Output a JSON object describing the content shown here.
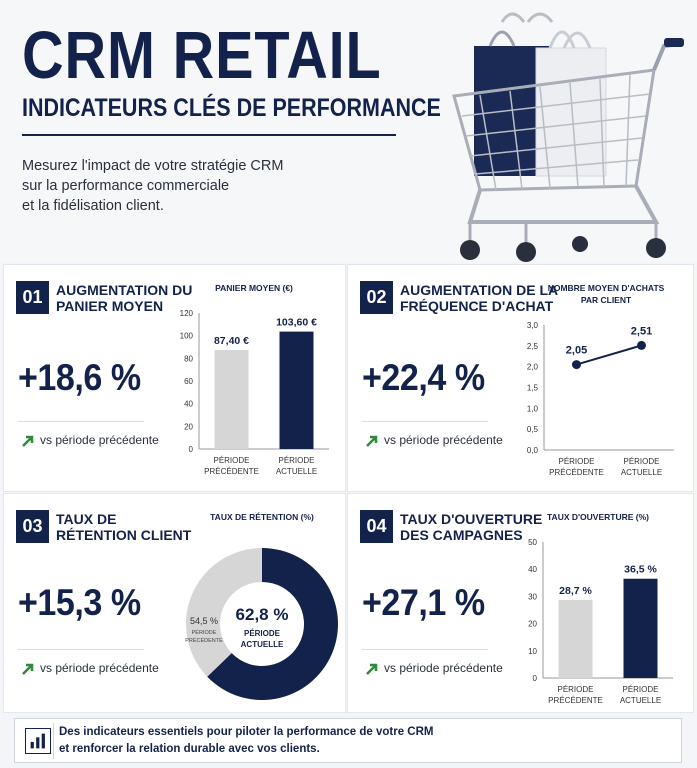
{
  "header": {
    "title": "CRM RETAIL",
    "subtitle": "INDICATEURS CLÉS DE PERFORMANCE",
    "intro_lines": [
      "Mesurez l'impact de votre stratégie CRM",
      "sur la performance commerciale",
      "et la fidélisation client."
    ]
  },
  "panels": [
    {
      "number": "01",
      "title_lines": [
        "AUGMENTATION DU",
        "PANIER MOYEN"
      ],
      "value": "+18,6 %",
      "vs_label": "vs période précédente"
    },
    {
      "number": "02",
      "title_lines": [
        "AUGMENTATION DE LA",
        "FRÉQUENCE D'ACHAT"
      ],
      "value": "+22,4 %",
      "vs_label": "vs période précédente"
    },
    {
      "number": "03",
      "title_lines": [
        "TAUX DE",
        "RÉTENTION CLIENT"
      ],
      "value": "+15,3 %",
      "vs_label": "vs période précédente"
    },
    {
      "number": "04",
      "title_lines": [
        "TAUX D'OUVERTURE",
        "DES CAMPAGNES"
      ],
      "value": "+27,1 %",
      "vs_label": "vs période précédente"
    }
  ],
  "chart_data": [
    {
      "type": "bar",
      "title": "PANIER MOYEN (€)",
      "categories": [
        [
          "PÉRIODE",
          "PRÉCÉDENTE"
        ],
        [
          "PÉRIODE",
          "ACTUELLE"
        ]
      ],
      "values": [
        87.4,
        103.6
      ],
      "data_labels": [
        "87,40 €",
        "103,60 €"
      ],
      "yticks": [
        "0",
        "20",
        "40",
        "60",
        "80",
        "100",
        "120"
      ],
      "ylim": [
        0,
        120
      ],
      "colors": [
        "#d6d6d6",
        "#13224a"
      ]
    },
    {
      "type": "line",
      "title_lines": [
        "NOMBRE MOYEN D'ACHATS",
        "PAR CLIENT"
      ],
      "categories": [
        [
          "PÉRIODE",
          "PRÉCÉDENTE"
        ],
        [
          "PÉRIODE",
          "ACTUELLE"
        ]
      ],
      "values": [
        2.05,
        2.51
      ],
      "data_labels": [
        "2,05",
        "2,51"
      ],
      "yticks": [
        "0,0",
        "0,5",
        "1,0",
        "1,5",
        "2,0",
        "2,5",
        "3,0"
      ],
      "ylim": [
        0,
        3
      ],
      "color": "#13224a"
    },
    {
      "type": "pie",
      "title": "TAUX DE RÉTENTION (%)",
      "slices": [
        {
          "value": 62.8,
          "label": "62,8 %",
          "sublabel_lines": [
            "PÉRIODE",
            "ACTUELLE"
          ],
          "color": "#13224a"
        },
        {
          "value": 54.5,
          "label": "54,5 %",
          "sublabel_lines": [
            "PÉRIODE",
            "PRÉCÉDENTE"
          ],
          "color": "#d6d6d6"
        }
      ]
    },
    {
      "type": "bar",
      "title": "TAUX D'OUVERTURE (%)",
      "categories": [
        [
          "PÉRIODE",
          "PRÉCÉDENTE"
        ],
        [
          "PÉRIODE",
          "ACTUELLE"
        ]
      ],
      "values": [
        28.7,
        36.5
      ],
      "data_labels": [
        "28,7 %",
        "36,5 %"
      ],
      "yticks": [
        "0",
        "10",
        "20",
        "30",
        "40",
        "50"
      ],
      "ylim": [
        0,
        50
      ],
      "colors": [
        "#d6d6d6",
        "#13224a"
      ]
    }
  ],
  "footer": {
    "icon": "bar-chart-icon",
    "lines": [
      "Des indicateurs essentiels pour piloter la performance de votre CRM",
      "et renforcer la relation durable avec vos clients."
    ]
  },
  "colors": {
    "navy": "#13224a",
    "gray": "#d6d6d6",
    "green_arrow": "#2e8b3a"
  }
}
